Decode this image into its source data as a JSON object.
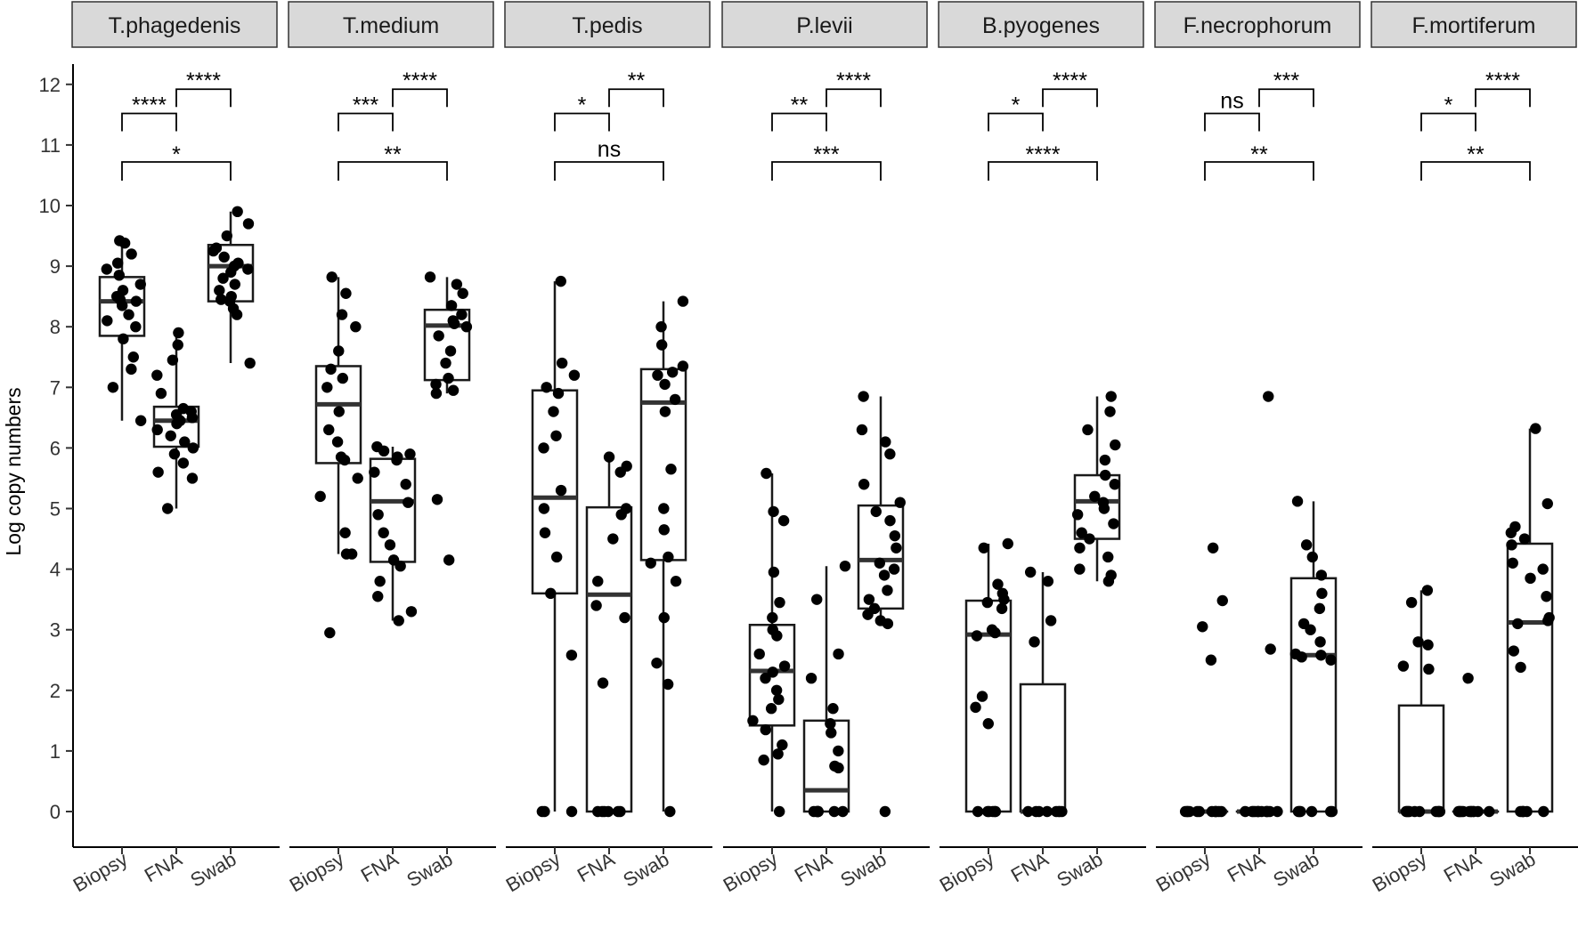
{
  "chart_data": {
    "type": "box",
    "ylabel": "Log copy numbers",
    "ylim": [
      0,
      12
    ],
    "yticks": [
      0,
      1,
      2,
      3,
      4,
      5,
      6,
      7,
      8,
      9,
      10,
      11,
      12
    ],
    "categories": [
      "Biopsy",
      "FNA",
      "Swab"
    ],
    "panels": [
      {
        "name": "T.phagedenis",
        "boxes": [
          {
            "q1": 7.85,
            "median": 8.42,
            "q3": 8.82,
            "whisker_low": 6.45,
            "whisker_high": 9.42,
            "points": [
              9.42,
              9.38,
              9.2,
              9.05,
              8.95,
              8.85,
              8.7,
              8.6,
              8.5,
              8.45,
              8.42,
              8.35,
              8.2,
              8.1,
              8.0,
              7.8,
              7.5,
              7.3,
              7.0,
              6.45
            ]
          },
          {
            "q1": 6.02,
            "median": 6.45,
            "q3": 6.68,
            "whisker_low": 5.0,
            "whisker_high": 7.9,
            "points": [
              7.9,
              7.7,
              7.45,
              7.2,
              6.9,
              6.65,
              6.6,
              6.55,
              6.5,
              6.45,
              6.4,
              6.3,
              6.2,
              6.1,
              6.0,
              5.9,
              5.75,
              5.6,
              5.5,
              5.0
            ]
          },
          {
            "q1": 8.42,
            "median": 9.0,
            "q3": 9.35,
            "whisker_low": 7.4,
            "whisker_high": 9.9,
            "points": [
              9.9,
              9.7,
              9.5,
              9.3,
              9.25,
              9.15,
              9.05,
              9.0,
              8.95,
              8.9,
              8.8,
              8.7,
              8.6,
              8.5,
              8.45,
              8.42,
              8.3,
              8.2,
              7.4
            ]
          }
        ],
        "sig": {
          "biopsy_fna": "****",
          "fna_swab": "****",
          "biopsy_swab": "*"
        }
      },
      {
        "name": "T.medium",
        "boxes": [
          {
            "q1": 5.75,
            "median": 6.72,
            "q3": 7.35,
            "whisker_low": 4.25,
            "whisker_high": 8.82,
            "points": [
              8.82,
              8.55,
              8.2,
              8.0,
              7.6,
              7.3,
              7.15,
              7.0,
              6.6,
              6.3,
              6.1,
              5.85,
              5.8,
              5.5,
              5.2,
              4.6,
              4.25,
              4.25,
              2.95
            ]
          },
          {
            "q1": 4.12,
            "median": 5.12,
            "q3": 5.82,
            "whisker_low": 3.15,
            "whisker_high": 6.02,
            "points": [
              6.02,
              5.95,
              5.9,
              5.85,
              5.8,
              5.6,
              5.4,
              5.1,
              4.9,
              4.6,
              4.4,
              4.15,
              4.05,
              3.8,
              3.55,
              3.3,
              3.15
            ]
          },
          {
            "q1": 7.12,
            "median": 8.02,
            "q3": 8.28,
            "whisker_low": 6.9,
            "whisker_high": 8.82,
            "points": [
              8.82,
              8.7,
              8.55,
              8.35,
              8.2,
              8.1,
              8.05,
              8.0,
              7.85,
              7.6,
              7.4,
              7.15,
              7.05,
              6.95,
              6.9,
              5.15,
              4.15
            ]
          }
        ],
        "sig": {
          "biopsy_fna": "***",
          "fna_swab": "****",
          "biopsy_swab": "**"
        }
      },
      {
        "name": "T.pedis",
        "boxes": [
          {
            "q1": 3.6,
            "median": 5.18,
            "q3": 6.95,
            "whisker_low": 0,
            "whisker_high": 8.75,
            "points": [
              8.75,
              7.4,
              7.2,
              7.0,
              6.9,
              6.6,
              6.2,
              6.0,
              5.3,
              5.0,
              4.6,
              4.2,
              3.6,
              2.58,
              0,
              0,
              0
            ]
          },
          {
            "q1": 0,
            "median": 3.58,
            "q3": 5.02,
            "whisker_low": 0,
            "whisker_high": 5.85,
            "points": [
              5.85,
              5.7,
              5.6,
              5.0,
              4.9,
              4.5,
              3.8,
              3.4,
              3.2,
              2.12,
              0,
              0,
              0,
              0,
              0,
              0
            ]
          },
          {
            "q1": 4.15,
            "median": 6.75,
            "q3": 7.3,
            "whisker_low": 0,
            "whisker_high": 8.42,
            "points": [
              8.42,
              8.0,
              7.7,
              7.35,
              7.25,
              7.2,
              7.05,
              6.8,
              6.6,
              5.65,
              5.0,
              4.65,
              4.2,
              4.1,
              3.8,
              3.2,
              2.45,
              2.1,
              0
            ]
          }
        ],
        "sig": {
          "biopsy_fna": "*",
          "fna_swab": "**",
          "biopsy_swab": "ns"
        }
      },
      {
        "name": "P.levii",
        "boxes": [
          {
            "q1": 1.42,
            "median": 2.32,
            "q3": 3.08,
            "whisker_low": 0,
            "whisker_high": 5.58,
            "points": [
              5.58,
              4.95,
              4.8,
              3.95,
              3.45,
              3.2,
              3.0,
              2.9,
              2.6,
              2.4,
              2.3,
              2.2,
              2.0,
              1.85,
              1.7,
              1.5,
              1.35,
              1.1,
              0.95,
              0.85,
              0
            ]
          },
          {
            "q1": 0,
            "median": 0.35,
            "q3": 1.5,
            "whisker_low": 0,
            "whisker_high": 4.05,
            "points": [
              4.05,
              3.5,
              2.6,
              2.2,
              1.7,
              1.45,
              1.3,
              1.0,
              0.75,
              0.72,
              0,
              0,
              0,
              0,
              0,
              0,
              0,
              0
            ]
          },
          {
            "q1": 3.35,
            "median": 4.15,
            "q3": 5.05,
            "whisker_low": 3.1,
            "whisker_high": 6.85,
            "points": [
              6.85,
              6.3,
              6.1,
              5.9,
              5.4,
              5.1,
              4.95,
              4.8,
              4.55,
              4.35,
              4.1,
              4.0,
              3.9,
              3.65,
              3.5,
              3.35,
              3.25,
              3.15,
              3.1,
              0
            ]
          }
        ],
        "sig": {
          "biopsy_fna": "**",
          "fna_swab": "****",
          "biopsy_swab": "***"
        }
      },
      {
        "name": "B.pyogenes",
        "boxes": [
          {
            "q1": 0,
            "median": 2.92,
            "q3": 3.48,
            "whisker_low": 0,
            "whisker_high": 4.42,
            "points": [
              4.42,
              4.35,
              3.75,
              3.6,
              3.5,
              3.45,
              3.35,
              3.0,
              2.95,
              2.9,
              1.9,
              1.72,
              1.45,
              0,
              0,
              0,
              0,
              0,
              0
            ]
          },
          {
            "q1": 0,
            "median": 0,
            "q3": 2.1,
            "whisker_low": 0,
            "whisker_high": 3.95,
            "points": [
              3.95,
              3.8,
              3.15,
              2.8,
              0,
              0,
              0,
              0,
              0,
              0,
              0,
              0
            ]
          },
          {
            "q1": 4.5,
            "median": 5.12,
            "q3": 5.55,
            "whisker_low": 3.8,
            "whisker_high": 6.85,
            "points": [
              6.85,
              6.6,
              6.3,
              6.05,
              5.8,
              5.55,
              5.4,
              5.2,
              5.1,
              5.0,
              4.9,
              4.75,
              4.6,
              4.5,
              4.35,
              4.2,
              4.0,
              3.9,
              3.8
            ]
          }
        ],
        "sig": {
          "biopsy_fna": "*",
          "fna_swab": "****",
          "biopsy_swab": "****"
        }
      },
      {
        "name": "F.necrophorum",
        "boxes": [
          {
            "q1": 0,
            "median": 0,
            "q3": 0,
            "whisker_low": 0,
            "whisker_high": 0,
            "points": [
              4.35,
              3.48,
              3.05,
              2.5,
              0,
              0,
              0,
              0,
              0,
              0,
              0,
              0,
              0,
              0,
              0,
              0
            ]
          },
          {
            "q1": 0,
            "median": 0,
            "q3": 0,
            "whisker_low": 0,
            "whisker_high": 0,
            "points": [
              6.85,
              2.68,
              0,
              0,
              0,
              0,
              0,
              0,
              0,
              0,
              0,
              0,
              0,
              0,
              0
            ]
          },
          {
            "q1": 0,
            "median": 2.58,
            "q3": 3.85,
            "whisker_low": 0,
            "whisker_high": 5.12,
            "points": [
              5.12,
              4.4,
              4.2,
              3.9,
              3.6,
              3.35,
              3.1,
              3.0,
              2.8,
              2.6,
              2.58,
              2.55,
              2.5,
              0,
              0,
              0,
              0,
              0,
              0
            ]
          }
        ],
        "sig": {
          "biopsy_fna": "ns",
          "fna_swab": "***",
          "biopsy_swab": "**"
        }
      },
      {
        "name": "F.mortiferum",
        "boxes": [
          {
            "q1": 0,
            "median": 0,
            "q3": 1.75,
            "whisker_low": 0,
            "whisker_high": 3.65,
            "points": [
              3.65,
              3.45,
              2.8,
              2.75,
              2.4,
              2.35,
              0,
              0,
              0,
              0,
              0,
              0,
              0,
              0,
              0,
              0
            ]
          },
          {
            "q1": 0,
            "median": 0,
            "q3": 0,
            "whisker_low": 0,
            "whisker_high": 0,
            "points": [
              2.2,
              0,
              0,
              0,
              0,
              0,
              0,
              0,
              0,
              0,
              0,
              0,
              0
            ]
          },
          {
            "q1": 0,
            "median": 3.12,
            "q3": 4.42,
            "whisker_low": 0,
            "whisker_high": 6.32,
            "points": [
              6.32,
              5.08,
              4.7,
              4.6,
              4.5,
              4.4,
              4.1,
              4.0,
              3.85,
              3.55,
              3.2,
              3.15,
              3.1,
              2.65,
              2.38,
              0,
              0,
              0,
              0,
              0,
              0
            ]
          }
        ],
        "sig": {
          "biopsy_fna": "*",
          "fna_swab": "****",
          "biopsy_swab": "**"
        }
      }
    ]
  }
}
